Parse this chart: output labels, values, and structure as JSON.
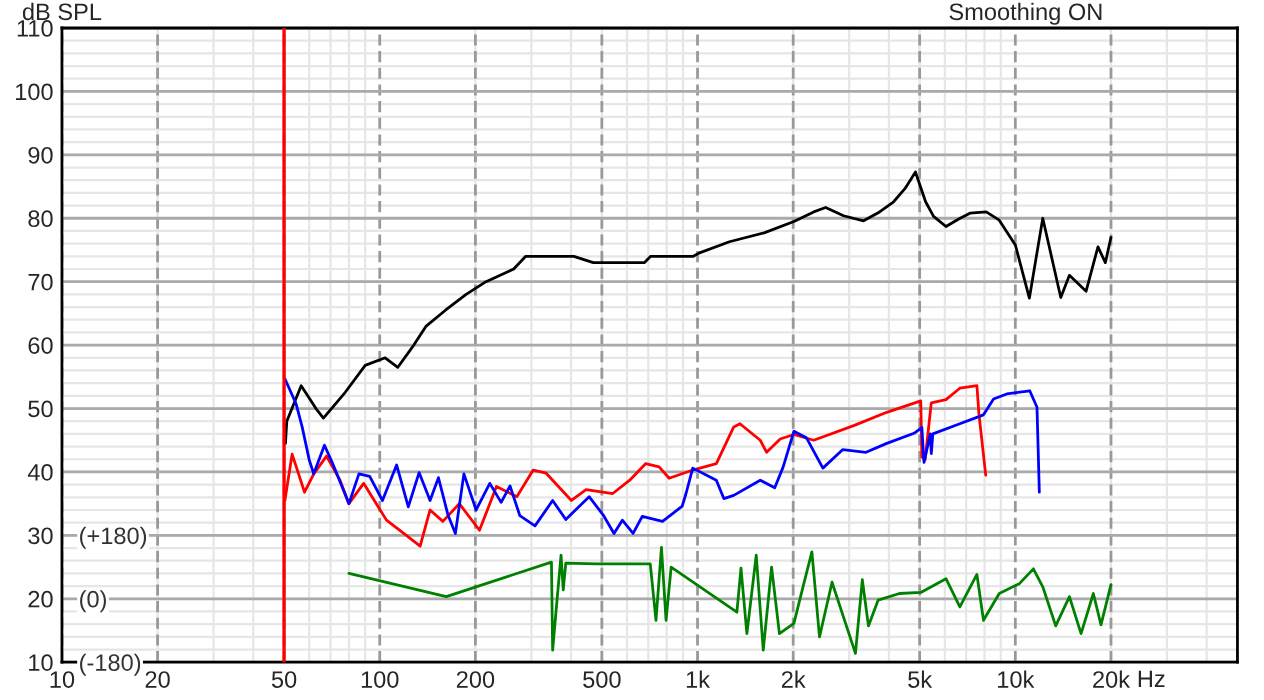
{
  "chart_data": {
    "type": "line",
    "xlabel": "Hz",
    "ylabel": "dB SPL",
    "annotations": [
      "Smoothing ON"
    ],
    "log": "x",
    "grid": true,
    "line_style": "solid",
    "marker": "none",
    "xlim": [
      10,
      50000
    ],
    "xticks": [
      10,
      20,
      50,
      100,
      200,
      500,
      {
        "value": 1000,
        "label": "1k"
      },
      {
        "value": 2000,
        "label": "2k"
      },
      {
        "value": 5000,
        "label": "5k"
      },
      {
        "value": 10000,
        "label": "10k"
      },
      {
        "value": 20000,
        "label": "20k"
      }
    ],
    "ylim": [
      10,
      110
    ],
    "yticks": [
      10,
      20,
      30,
      40,
      50,
      60,
      70,
      80,
      90,
      100,
      110
    ],
    "y2lim": [
      -180,
      1620
    ],
    "y2ticks": [
      {
        "value": -180,
        "label": "(-180)"
      },
      {
        "value": 0,
        "label": "(0)"
      },
      {
        "value": 180,
        "label": "(+180)"
      }
    ],
    "ref_lines": [
      {
        "axis": "x",
        "value": 50,
        "label": null,
        "color": "#ff0000"
      }
    ],
    "series": [
      {
        "color": "#000000",
        "x": [
          50.5,
          51,
          56.6,
          63,
          66.5,
          78,
          90,
          104,
          114,
          128,
          140,
          161,
          187,
          216,
          264,
          288,
          408,
          470,
          493,
          680,
          712,
          970,
          1010,
          1260,
          1620,
          2010,
          2320,
          2530,
          2880,
          3330,
          3740,
          4140,
          4500,
          4850,
          5220,
          5530,
          6050,
          6700,
          7200,
          8100,
          8900,
          10000,
          11070,
          12200,
          13900,
          14800,
          16700,
          18200,
          19200,
          20000
        ],
        "values": [
          44.5,
          48,
          53.6,
          50,
          48.5,
          52.6,
          56.8,
          58,
          56.5,
          60,
          63,
          65.5,
          68,
          70,
          72,
          74,
          74,
          73,
          73,
          73,
          74,
          74,
          74.5,
          76.3,
          77.7,
          79.5,
          81,
          81.7,
          80.4,
          79.6,
          81,
          82.6,
          84.7,
          87.3,
          82.6,
          80.3,
          78.7,
          80,
          80.8,
          81,
          79.7,
          75.8,
          67.4,
          80,
          67.5,
          71,
          68.5,
          75.5,
          73,
          77
        ]
      },
      {
        "color": "#ff0000",
        "x": [
          50.3,
          53,
          58,
          62,
          68,
          75,
          80,
          89,
          105,
          119,
          134,
          144,
          158,
          178,
          206,
          233,
          270,
          304,
          334,
          401,
          446,
          541,
          612,
          686,
          757,
          814,
          966,
          1146,
          1300,
          1360,
          1575,
          1650,
          1820,
          2010,
          2320,
          3100,
          3940,
          5040,
          5080,
          5200,
          5440,
          6050,
          6690,
          7570,
          7680,
          8070
        ],
        "values": [
          35.5,
          42.8,
          36.8,
          39.7,
          42.5,
          38.7,
          35,
          38.2,
          32.4,
          30.3,
          28.3,
          34,
          32.2,
          35,
          30.8,
          37.7,
          36.1,
          40.3,
          39.8,
          35.5,
          37.2,
          36.6,
          38.7,
          41.3,
          40.8,
          39,
          40.3,
          41.3,
          47.1,
          47.6,
          45,
          43.1,
          45.2,
          45.9,
          45,
          47.3,
          49.4,
          51.2,
          42.4,
          41.9,
          50.9,
          51.4,
          53.2,
          53.6,
          49.2,
          39.5
        ]
      },
      {
        "color": "#0000ff",
        "x": [
          50.3,
          54.5,
          57,
          60,
          62,
          67,
          71,
          80,
          86,
          93,
          102,
          113,
          123,
          133,
          144,
          153,
          164,
          173,
          184,
          201,
          222,
          241,
          257,
          276,
          308,
          350,
          385,
          456,
          505,
          546,
          580,
          627,
          670,
          776,
          895,
          920,
          966,
          1146,
          1210,
          1300,
          1575,
          1750,
          1860,
          2010,
          2200,
          2480,
          2860,
          3390,
          3940,
          4800,
          5080,
          5160,
          5400,
          5440,
          5500,
          6690,
          7940,
          8540,
          9400,
          11100,
          11700,
          11900
        ],
        "values": [
          54.7,
          50.8,
          47.1,
          41.9,
          39.7,
          44.2,
          41.4,
          35,
          39.7,
          39.3,
          35.5,
          41.1,
          34.5,
          39.9,
          35.5,
          39.1,
          33.2,
          30.3,
          39.7,
          34,
          38.2,
          35.2,
          37.8,
          33.1,
          31.5,
          35.5,
          32.5,
          36.1,
          33.2,
          30.3,
          32.4,
          30.3,
          33,
          32.2,
          34.6,
          36.6,
          40.6,
          38.7,
          35.8,
          36.3,
          38.7,
          37.5,
          40.8,
          46.4,
          45.4,
          40.6,
          43.5,
          43.1,
          44.5,
          46.1,
          47,
          41.5,
          46,
          42.9,
          46,
          47.6,
          49,
          51.5,
          52.3,
          52.8,
          50.2,
          36.8
        ]
      },
      {
        "color": "#008000",
        "axis": "y2",
        "x": [
          80,
          162,
          347,
          350,
          360,
          372,
          378,
          385,
          480,
          710,
          740,
          770,
          796,
          826,
          1330,
          1370,
          1430,
          1530,
          1610,
          1710,
          1810,
          2010,
          2160,
          2290,
          2420,
          2650,
          3140,
          3300,
          3450,
          3700,
          4320,
          5040,
          6050,
          6690,
          7570,
          7940,
          8900,
          10300,
          11400,
          12200,
          13400,
          14800,
          16100,
          17600,
          18600,
          20000
        ],
        "values": [
          72,
          6,
          104,
          -146,
          -20,
          124,
          25,
          101,
          99,
          99,
          -61,
          146,
          -61,
          90,
          -38,
          87,
          -99,
          124,
          -146,
          90,
          -99,
          -70,
          43,
          133,
          -108,
          47,
          -155,
          54,
          -77,
          -4,
          15,
          18,
          57,
          -23,
          69,
          -61,
          15,
          43,
          85,
          34,
          -77,
          6,
          -99,
          15,
          -74,
          40
        ]
      }
    ]
  }
}
